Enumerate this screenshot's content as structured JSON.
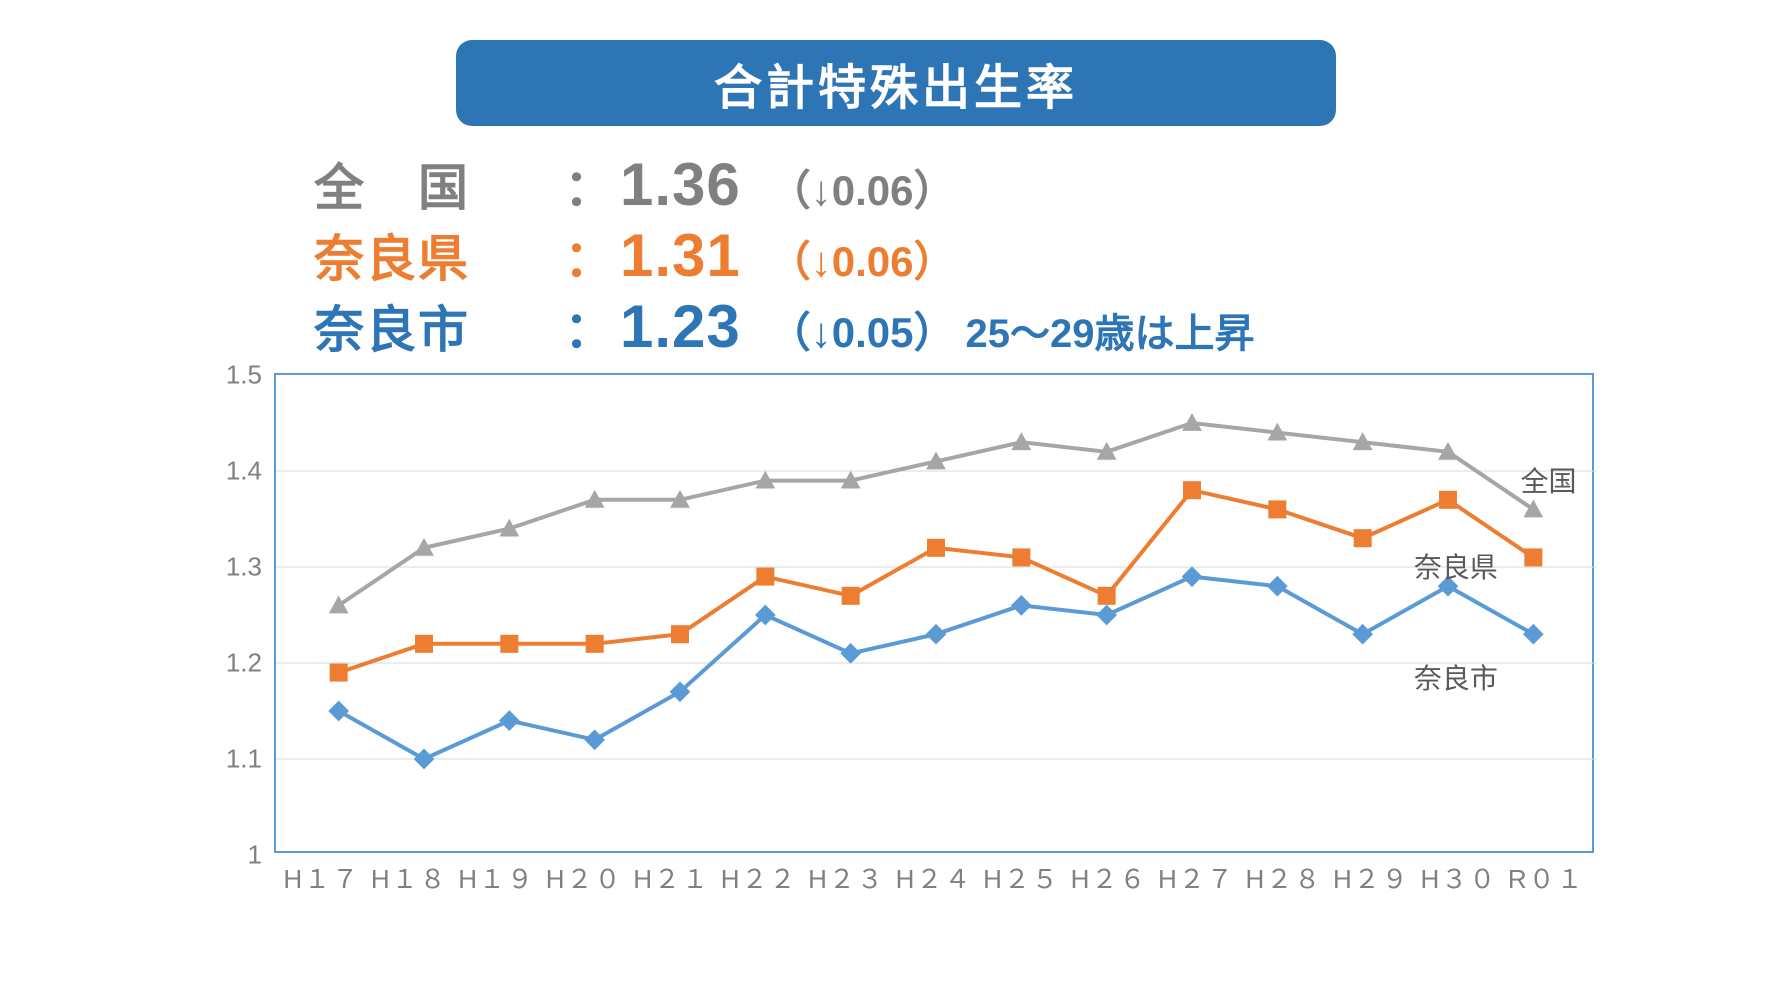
{
  "title": {
    "text": "合計特殊出生率",
    "bg": "#2e75b6",
    "color": "#ffffff",
    "fontsize": 48
  },
  "summary": [
    {
      "label": "全　国",
      "value": "1.36",
      "delta": "（↓0.06）",
      "extra": "",
      "color": "#808080"
    },
    {
      "label": "奈良県",
      "value": "1.31",
      "delta": "（↓0.06）",
      "extra": "",
      "color": "#ed7d31"
    },
    {
      "label": "奈良市",
      "value": "1.23",
      "delta": "（↓0.05）",
      "extra": "25～29歳は上昇",
      "color": "#2e75b6"
    }
  ],
  "chart": {
    "type": "line",
    "categories": [
      "H１７",
      "H１８",
      "H１９",
      "H２０",
      "H２１",
      "H２２",
      "H２３",
      "H２４",
      "H２５",
      "H２６",
      "H２７",
      "H２８",
      "H２９",
      "H３０",
      "R０１"
    ],
    "ylim": [
      1.0,
      1.5
    ],
    "ytick_step": 0.1,
    "yticks": [
      "1",
      "1.1",
      "1.2",
      "1.3",
      "1.4",
      "1.5"
    ],
    "grid_color": "#d9d9d9",
    "border_color": "#5b9bd5",
    "background": "#ffffff",
    "line_width": 4,
    "marker_size": 9,
    "series": [
      {
        "name": "全国",
        "color": "#a6a6a6",
        "marker": "triangle",
        "values": [
          1.26,
          1.32,
          1.34,
          1.37,
          1.37,
          1.39,
          1.39,
          1.41,
          1.43,
          1.42,
          1.45,
          1.44,
          1.43,
          1.42,
          1.36
        ],
        "label_pos": {
          "x_index": 14.35,
          "y": 1.395
        }
      },
      {
        "name": "奈良県",
        "color": "#ed7d31",
        "marker": "square",
        "values": [
          1.19,
          1.22,
          1.22,
          1.22,
          1.23,
          1.29,
          1.27,
          1.32,
          1.31,
          1.27,
          1.38,
          1.36,
          1.33,
          1.37,
          1.31
        ],
        "label_pos": {
          "x_index": 13.1,
          "y": 1.305
        }
      },
      {
        "name": "奈良市",
        "color": "#5b9bd5",
        "marker": "diamond",
        "values": [
          1.15,
          1.1,
          1.14,
          1.12,
          1.17,
          1.25,
          1.21,
          1.23,
          1.26,
          1.25,
          1.29,
          1.28,
          1.23,
          1.28,
          1.23
        ],
        "label_pos": {
          "x_index": 13.1,
          "y": 1.19
        }
      }
    ]
  }
}
